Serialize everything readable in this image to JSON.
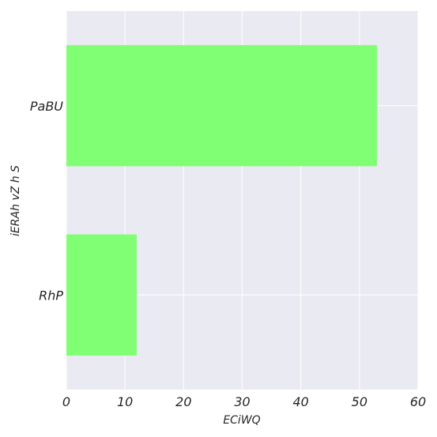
{
  "chart_data": {
    "type": "bar",
    "orientation": "horizontal",
    "categories": [
      "PaBU",
      "RhP"
    ],
    "values": [
      53,
      12
    ],
    "xlabel": "ECiWQ",
    "ylabel": "iERAh vZ h S",
    "xlim": [
      0,
      60
    ],
    "xticks": [
      0,
      10,
      20,
      30,
      40,
      50,
      60
    ],
    "grid": true,
    "colors": {
      "bar": "#80ff75",
      "plot_background": "#eaeaf2",
      "grid": "#ffffff"
    }
  }
}
